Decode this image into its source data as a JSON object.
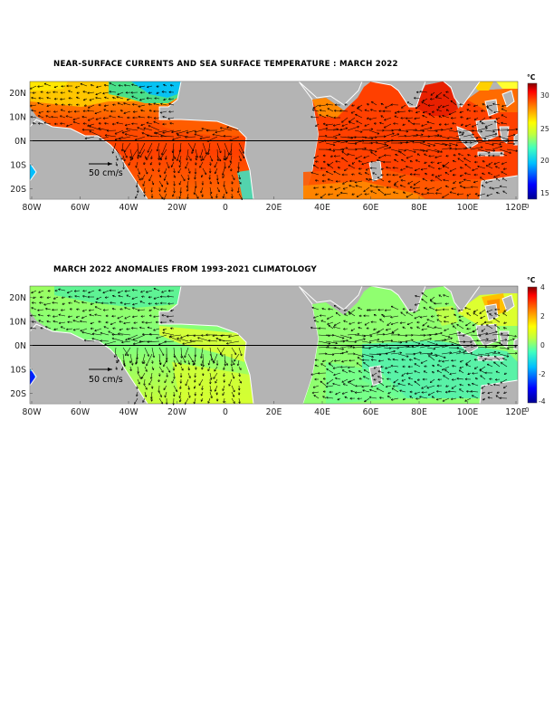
{
  "panels": [
    {
      "title": "NEAR-SURFACE CURRENTS AND SEA SURFACE TEMPERATURE : MARCH 2022",
      "x_ticks": [
        "80W",
        "60W",
        "40W",
        "20W",
        "0",
        "20E",
        "40E",
        "60E",
        "80E",
        "100E",
        "120E"
      ],
      "y_ticks": [
        "20N",
        "10N",
        "0N",
        "10S",
        "20S"
      ],
      "colorbar": {
        "unit": "°C",
        "ticks": [
          "30",
          "25",
          "20",
          "15"
        ],
        "low_label": "0",
        "range": [
          14,
          32
        ]
      },
      "scale_label": "50 cm/s",
      "palette": [
        "#00008f",
        "#0000ff",
        "#00bfff",
        "#40ffbf",
        "#bfff40",
        "#ffff00",
        "#ff8000",
        "#ff0000",
        "#800000"
      ]
    },
    {
      "title": "MARCH 2022 ANOMALIES FROM 1993-2021 CLIMATOLOGY",
      "x_ticks": [
        "80W",
        "60W",
        "40W",
        "20W",
        "0",
        "20E",
        "40E",
        "60E",
        "80E",
        "100E",
        "120E"
      ],
      "y_ticks": [
        "20N",
        "10N",
        "0N",
        "10S",
        "20S"
      ],
      "colorbar": {
        "unit": "°C",
        "ticks": [
          "4",
          "2",
          "0",
          "-2",
          "-4"
        ],
        "low_label": "0",
        "range": [
          -4,
          4
        ]
      },
      "scale_label": "50 cm/s",
      "palette": [
        "#00008f",
        "#0000ff",
        "#00bfff",
        "#40ffbf",
        "#bfff40",
        "#ffff00",
        "#ff8000",
        "#ff0000",
        "#800000"
      ]
    }
  ],
  "colors": {
    "land": "#b4b4b4",
    "coast": "#ffffff",
    "arrow": "#000000"
  }
}
